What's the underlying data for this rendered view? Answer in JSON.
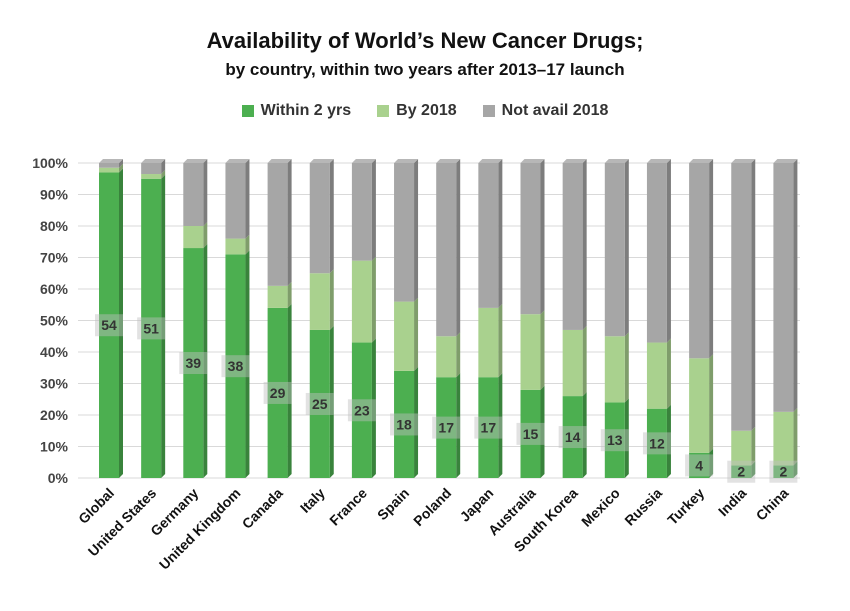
{
  "chart_data": {
    "type": "bar",
    "stacked": true,
    "title": "Availability of World’s New Cancer Drugs;",
    "subtitle": "by country, within two years after 2013–17 launch",
    "legend_position": "top",
    "grid": true,
    "ylim": [
      0,
      100
    ],
    "y_ticks": [
      "0%",
      "10%",
      "20%",
      "30%",
      "40%",
      "50%",
      "60%",
      "70%",
      "80%",
      "90%",
      "100%"
    ],
    "categories": [
      "Global",
      "United States",
      "Germany",
      "United Kingdom",
      "Canada",
      "Italy",
      "France",
      "Spain",
      "Poland",
      "Japan",
      "Australia",
      "South Korea",
      "Mexico",
      "Russia",
      "Turkey",
      "India",
      "China"
    ],
    "series": [
      {
        "name": "Within 2 yrs",
        "color": "#4caf50",
        "values": [
          97,
          95,
          73,
          71,
          54,
          47,
          43,
          34,
          32,
          32,
          28,
          26,
          24,
          22,
          8,
          4,
          4
        ]
      },
      {
        "name": "By 2018",
        "color": "#a9d18e",
        "values": [
          1.5,
          1.5,
          7,
          5,
          7,
          18,
          26,
          22,
          13,
          22,
          24,
          21,
          21,
          21,
          30,
          11,
          17
        ]
      },
      {
        "name": "Not avail 2018",
        "color": "#a6a6a6",
        "values": [
          1.5,
          3.5,
          20,
          24,
          39,
          35,
          31,
          44,
          55,
          46,
          48,
          53,
          55,
          57,
          62,
          85,
          79
        ]
      }
    ],
    "data_labels": [
      "54",
      "51",
      "39",
      "38",
      "29",
      "25",
      "23",
      "18",
      "17",
      "17",
      "15",
      "14",
      "13",
      "12",
      "4",
      "2",
      "2"
    ]
  }
}
